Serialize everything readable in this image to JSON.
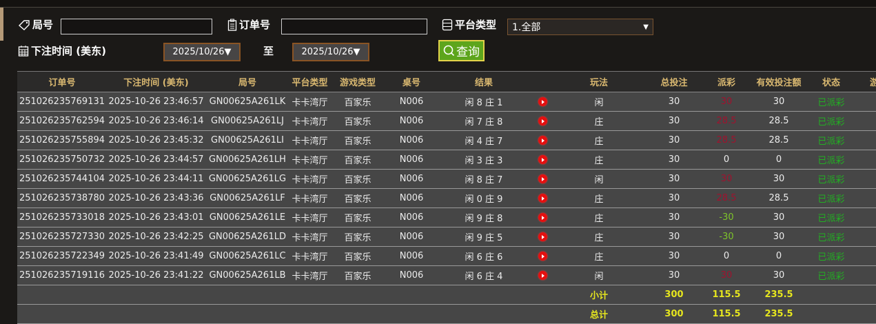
{
  "filters": {
    "round_label": "局号",
    "round_value": "",
    "order_label": "订单号",
    "order_value": "",
    "platform_label": "平台类型",
    "platform_value": "1.全部",
    "time_label": "下注时间 (美东)",
    "date_from": "2025/10/26▼",
    "to_label": "至",
    "date_to": "2025/10/26▼",
    "query_label": "查询"
  },
  "table": {
    "headers": [
      "订单号",
      "下注时间 (美东)",
      "局号",
      "平台类型",
      "游戏类型",
      "桌号",
      "结果",
      "",
      "玩法",
      "总投注",
      "派彩",
      "有效投注额",
      "状态",
      "游"
    ],
    "rows": [
      [
        "251026235769131",
        "2025-10-26 23:46:57",
        "GN00625A261LK",
        "卡卡湾厅",
        "百家乐",
        "N006",
        "闲 8 庄 1",
        "闲",
        "30",
        "30",
        "30",
        "已派彩"
      ],
      [
        "251026235762594",
        "2025-10-26 23:46:14",
        "GN00625A261LJ",
        "卡卡湾厅",
        "百家乐",
        "N006",
        "闲 7 庄 8",
        "庄",
        "30",
        "28.5",
        "28.5",
        "已派彩"
      ],
      [
        "251026235755894",
        "2025-10-26 23:45:32",
        "GN00625A261LI",
        "卡卡湾厅",
        "百家乐",
        "N006",
        "闲 4 庄 7",
        "庄",
        "30",
        "28.5",
        "28.5",
        "已派彩"
      ],
      [
        "251026235750732",
        "2025-10-26 23:44:57",
        "GN00625A261LH",
        "卡卡湾厅",
        "百家乐",
        "N006",
        "闲 3 庄 3",
        "庄",
        "30",
        "0",
        "0",
        "已派彩"
      ],
      [
        "251026235744104",
        "2025-10-26 23:44:11",
        "GN00625A261LG",
        "卡卡湾厅",
        "百家乐",
        "N006",
        "闲 8 庄 7",
        "闲",
        "30",
        "30",
        "30",
        "已派彩"
      ],
      [
        "251026235738780",
        "2025-10-26 23:43:36",
        "GN00625A261LF",
        "卡卡湾厅",
        "百家乐",
        "N006",
        "闲 0 庄 9",
        "庄",
        "30",
        "28.5",
        "28.5",
        "已派彩"
      ],
      [
        "251026235733018",
        "2025-10-26 23:43:01",
        "GN00625A261LE",
        "卡卡湾厅",
        "百家乐",
        "N006",
        "闲 9 庄 8",
        "庄",
        "30",
        "-30",
        "30",
        "已派彩"
      ],
      [
        "251026235727330",
        "2025-10-26 23:42:25",
        "GN00625A261LD",
        "卡卡湾厅",
        "百家乐",
        "N006",
        "闲 9 庄 5",
        "庄",
        "30",
        "-30",
        "30",
        "已派彩"
      ],
      [
        "251026235722349",
        "2025-10-26 23:41:49",
        "GN00625A261LC",
        "卡卡湾厅",
        "百家乐",
        "N006",
        "闲 6 庄 6",
        "庄",
        "30",
        "0",
        "0",
        "已派彩"
      ],
      [
        "251026235719116",
        "2025-10-26 23:41:22",
        "GN00625A261LB",
        "卡卡湾厅",
        "百家乐",
        "N006",
        "闲 6 庄 4",
        "闲",
        "30",
        "30",
        "30",
        "已派彩"
      ]
    ],
    "subtotal": {
      "label": "小计",
      "total_bet": "300",
      "payout": "115.5",
      "valid_bet": "235.5"
    },
    "total": {
      "label": "总计",
      "total_bet": "300",
      "payout": "115.5",
      "valid_bet": "235.5"
    }
  },
  "colors": {
    "header_text": "#d9b870",
    "payout_win": "#a0122e",
    "payout_loss": "#7ec42a",
    "status": "#22b022",
    "totals": "#e6e61e",
    "query_button": "#5da51c"
  },
  "icons": {
    "round": "tag-icon",
    "order": "clipboard-icon",
    "platform": "list-icon",
    "time": "calendar-icon",
    "query": "search-icon",
    "result": "play-icon"
  }
}
